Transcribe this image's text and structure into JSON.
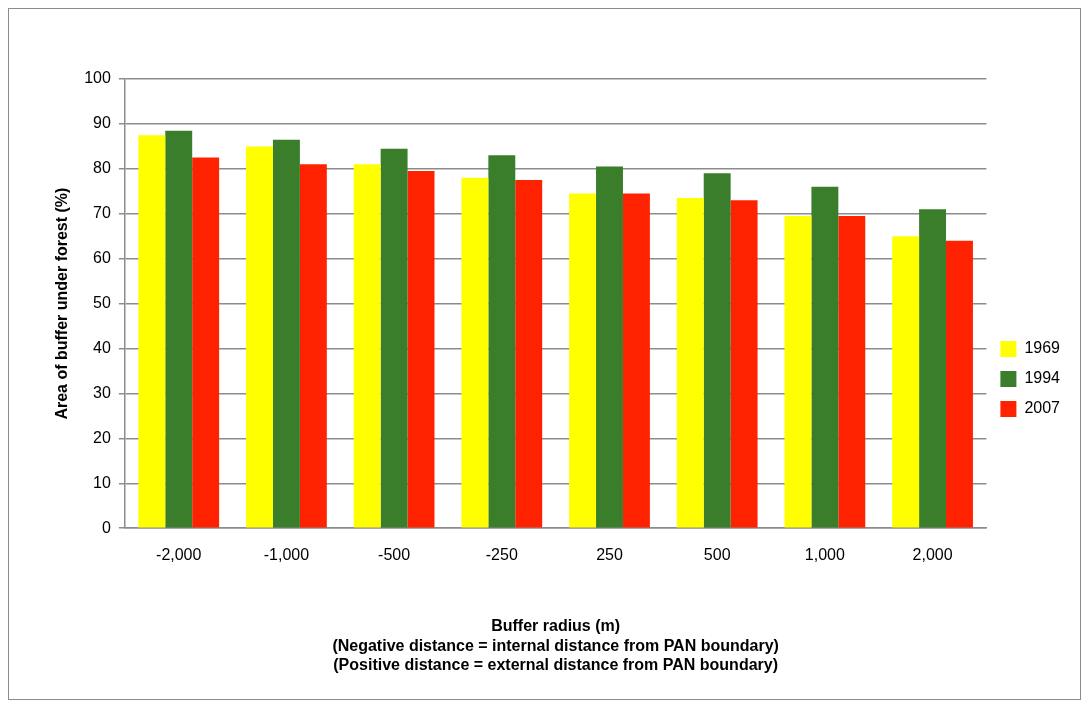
{
  "chart_data": {
    "type": "bar",
    "xlabel": "Buffer radius (m)\n(Negative distance = internal distance from PAN boundary)\n(Positive distance = external distance from PAN boundary)",
    "ylabel": "Area of buffer under forest (%)",
    "categories": [
      "-2,000",
      "-1,000",
      "-500",
      "-250",
      "250",
      "500",
      "1,000",
      "2,000"
    ],
    "series": [
      {
        "name": "1969",
        "color": "#ffff00",
        "values": [
          87.5,
          85,
          81,
          78,
          74.5,
          73.5,
          69.5,
          65
        ]
      },
      {
        "name": "1994",
        "color": "#3a7d2a",
        "values": [
          88.5,
          86.5,
          84.5,
          83,
          80.5,
          79,
          76,
          71
        ]
      },
      {
        "name": "2007",
        "color": "#ff2200",
        "values": [
          82.5,
          81,
          79.5,
          77.5,
          74.5,
          73,
          69.5,
          64
        ]
      }
    ],
    "ylim": [
      0,
      100
    ],
    "yticks": [
      0,
      10,
      20,
      30,
      40,
      50,
      60,
      70,
      80,
      90,
      100
    ],
    "grid": "y",
    "legend": "right"
  }
}
